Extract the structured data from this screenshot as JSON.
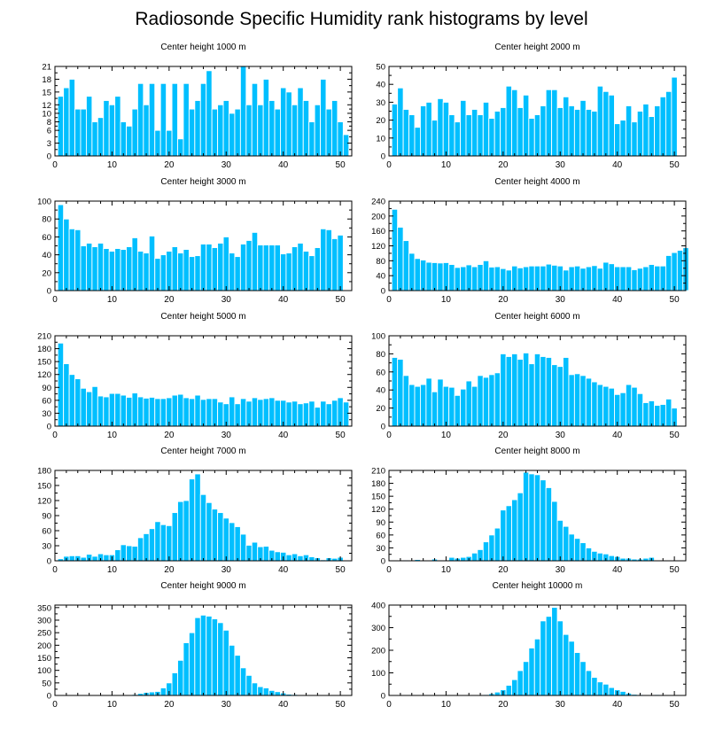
{
  "title": "Radiosonde Specific Humidity rank histograms by level",
  "colors": {
    "bar": "#00bfff",
    "bar_edge": "#ffffff",
    "axis": "#000000"
  },
  "chart_data": [
    {
      "type": "bar",
      "title": "Center height 1000 m",
      "xlim": [
        0,
        52
      ],
      "xticks": [
        0,
        10,
        20,
        30,
        40,
        50
      ],
      "ylim": [
        0,
        21
      ],
      "yticks": [
        0,
        3,
        6,
        8,
        10,
        12,
        15,
        18,
        21
      ],
      "ytick_labels": [
        "0",
        "3",
        "6",
        "8",
        "10",
        "12",
        "15",
        "18",
        "21"
      ],
      "values": [
        14,
        16,
        18,
        11,
        11,
        14,
        8,
        9,
        13,
        12,
        14,
        8,
        7,
        11,
        17,
        12,
        17,
        6,
        17,
        6,
        17,
        4,
        17,
        11,
        13,
        17,
        20,
        11,
        12,
        13,
        10,
        11,
        21,
        12,
        17,
        12,
        18,
        13,
        11,
        16,
        15,
        12,
        16,
        13,
        8,
        12,
        18,
        11,
        13,
        8,
        5
      ]
    },
    {
      "type": "bar",
      "title": "Center height 2000 m",
      "xlim": [
        0,
        52
      ],
      "xticks": [
        0,
        10,
        20,
        30,
        40,
        50
      ],
      "ylim": [
        0,
        50
      ],
      "yticks": [
        0,
        10,
        20,
        30,
        40,
        50
      ],
      "ytick_labels": [
        "0",
        "10",
        "20",
        "30",
        "40",
        "50"
      ],
      "values": [
        29,
        38,
        26,
        23,
        16,
        28,
        30,
        20,
        32,
        30,
        23,
        19,
        31,
        23,
        26,
        23,
        30,
        21,
        25,
        27,
        39,
        37,
        27,
        34,
        21,
        23,
        28,
        37,
        37,
        27,
        33,
        28,
        26,
        31,
        26,
        25,
        39,
        36,
        34,
        18,
        20,
        28,
        19,
        25,
        29,
        22,
        28,
        33,
        36,
        44
      ]
    },
    {
      "type": "bar",
      "title": "Center height 3000 m",
      "xlim": [
        0,
        52
      ],
      "xticks": [
        0,
        10,
        20,
        30,
        40,
        50
      ],
      "ylim": [
        0,
        100
      ],
      "yticks": [
        0,
        20,
        40,
        60,
        80,
        100
      ],
      "ytick_labels": [
        "0",
        "20",
        "40",
        "60",
        "80",
        "100"
      ],
      "values": [
        96,
        80,
        69,
        68,
        50,
        53,
        49,
        53,
        47,
        44,
        47,
        46,
        49,
        59,
        44,
        42,
        61,
        36,
        40,
        44,
        49,
        42,
        46,
        38,
        39,
        52,
        52,
        48,
        53,
        60,
        42,
        38,
        52,
        56,
        65,
        51,
        51,
        51,
        51,
        41,
        42,
        49,
        53,
        44,
        39,
        48,
        69,
        68,
        58,
        62
      ]
    },
    {
      "type": "bar",
      "title": "Center height 4000 m",
      "xlim": [
        0,
        52
      ],
      "xticks": [
        0,
        10,
        20,
        30,
        40,
        50
      ],
      "ylim": [
        0,
        240
      ],
      "yticks": [
        0,
        40,
        80,
        120,
        160,
        200,
        240
      ],
      "ytick_labels": [
        "0",
        "40",
        "80",
        "120",
        "160",
        "200",
        "240"
      ],
      "values": [
        218,
        170,
        134,
        100,
        86,
        82,
        76,
        75,
        74,
        75,
        70,
        62,
        64,
        69,
        64,
        70,
        80,
        63,
        64,
        59,
        55,
        66,
        61,
        64,
        66,
        66,
        66,
        71,
        68,
        66,
        55,
        64,
        66,
        60,
        64,
        67,
        60,
        76,
        72,
        64,
        64,
        64,
        56,
        60,
        64,
        70,
        66,
        66,
        94,
        102,
        108,
        115
      ]
    },
    {
      "type": "bar",
      "title": "Center height 5000 m",
      "xlim": [
        0,
        52
      ],
      "xticks": [
        0,
        10,
        20,
        30,
        40,
        50
      ],
      "ylim": [
        0,
        210
      ],
      "yticks": [
        0,
        30,
        60,
        90,
        120,
        150,
        180,
        210
      ],
      "ytick_labels": [
        "0",
        "30",
        "60",
        "90",
        "120",
        "150",
        "180",
        "210"
      ],
      "values": [
        193,
        145,
        120,
        110,
        88,
        80,
        92,
        70,
        68,
        76,
        76,
        72,
        67,
        77,
        68,
        65,
        67,
        64,
        64,
        66,
        72,
        74,
        66,
        64,
        72,
        62,
        64,
        64,
        56,
        52,
        68,
        52,
        64,
        58,
        66,
        62,
        64,
        66,
        60,
        60,
        56,
        58,
        52,
        54,
        58,
        44,
        58,
        52,
        60,
        66,
        56
      ]
    },
    {
      "type": "bar",
      "title": "Center height 6000 m",
      "xlim": [
        0,
        52
      ],
      "xticks": [
        0,
        10,
        20,
        30,
        40,
        50
      ],
      "ylim": [
        0,
        100
      ],
      "yticks": [
        0,
        20,
        40,
        60,
        80,
        100
      ],
      "ytick_labels": [
        "0",
        "20",
        "40",
        "60",
        "80",
        "100"
      ],
      "values": [
        76,
        74,
        56,
        46,
        44,
        46,
        53,
        38,
        52,
        44,
        43,
        34,
        41,
        50,
        44,
        56,
        54,
        57,
        59,
        80,
        77,
        80,
        74,
        81,
        69,
        80,
        77,
        76,
        68,
        66,
        76,
        57,
        58,
        56,
        53,
        49,
        46,
        44,
        42,
        35,
        37,
        46,
        43,
        36,
        26,
        28,
        23,
        24,
        30,
        20
      ]
    },
    {
      "type": "bar",
      "title": "Center height 7000 m",
      "xlim": [
        0,
        52
      ],
      "xticks": [
        0,
        10,
        20,
        30,
        40,
        50
      ],
      "ylim": [
        0,
        180
      ],
      "yticks": [
        0,
        30,
        60,
        90,
        120,
        150,
        180
      ],
      "ytick_labels": [
        "0",
        "30",
        "60",
        "90",
        "120",
        "150",
        "180"
      ],
      "values": [
        4,
        9,
        10,
        10,
        7,
        13,
        9,
        14,
        12,
        12,
        22,
        32,
        30,
        29,
        46,
        54,
        64,
        78,
        72,
        70,
        96,
        118,
        120,
        163,
        173,
        132,
        116,
        103,
        96,
        85,
        76,
        68,
        53,
        31,
        37,
        28,
        29,
        21,
        18,
        17,
        12,
        14,
        10,
        12,
        8,
        6,
        2,
        6,
        5,
        7
      ]
    },
    {
      "type": "bar",
      "title": "Center height 8000 m",
      "xlim": [
        0,
        52
      ],
      "xticks": [
        0,
        10,
        20,
        30,
        40,
        50
      ],
      "ylim": [
        0,
        210
      ],
      "yticks": [
        0,
        30,
        60,
        90,
        120,
        150,
        180,
        210
      ],
      "ytick_labels": [
        "0",
        "30",
        "60",
        "90",
        "120",
        "150",
        "180",
        "210"
      ],
      "values": [
        0,
        0,
        2,
        0,
        3,
        0,
        0,
        4,
        2,
        2,
        8,
        6,
        8,
        10,
        18,
        26,
        44,
        60,
        76,
        118,
        128,
        142,
        158,
        206,
        202,
        200,
        188,
        170,
        138,
        94,
        80,
        62,
        52,
        42,
        30,
        22,
        18,
        16,
        12,
        10,
        6,
        6,
        4,
        4,
        6,
        8,
        1,
        0,
        0,
        0
      ]
    },
    {
      "type": "bar",
      "title": "Center height 9000 m",
      "xlim": [
        0,
        52
      ],
      "xticks": [
        0,
        10,
        20,
        30,
        40,
        50
      ],
      "ylim": [
        0,
        360
      ],
      "yticks": [
        0,
        50,
        100,
        150,
        200,
        250,
        300,
        350
      ],
      "ytick_labels": [
        "0",
        "50",
        "100",
        "150",
        "200",
        "250",
        "300",
        "350"
      ],
      "values": [
        0,
        0,
        0,
        0,
        0,
        0,
        0,
        0,
        0,
        0,
        0,
        0,
        0,
        4,
        8,
        12,
        14,
        16,
        30,
        50,
        90,
        140,
        210,
        250,
        310,
        320,
        316,
        305,
        290,
        260,
        200,
        160,
        110,
        80,
        50,
        35,
        30,
        20,
        15,
        10,
        5,
        4,
        3,
        2,
        1,
        0,
        0,
        0,
        0,
        0
      ]
    },
    {
      "type": "bar",
      "title": "Center height 10000 m",
      "xlim": [
        0,
        52
      ],
      "xticks": [
        0,
        10,
        20,
        30,
        40,
        50
      ],
      "ylim": [
        0,
        400
      ],
      "yticks": [
        0,
        100,
        200,
        300,
        400
      ],
      "ytick_labels": [
        "0",
        "100",
        "200",
        "300",
        "400"
      ],
      "values": [
        0,
        0,
        0,
        0,
        0,
        0,
        0,
        0,
        0,
        0,
        0,
        0,
        0,
        0,
        0,
        0,
        4,
        8,
        15,
        25,
        45,
        70,
        110,
        150,
        210,
        250,
        330,
        350,
        390,
        330,
        270,
        240,
        190,
        150,
        110,
        80,
        60,
        50,
        35,
        25,
        18,
        10,
        5,
        4,
        3,
        3,
        4,
        3,
        2,
        0
      ]
    }
  ]
}
